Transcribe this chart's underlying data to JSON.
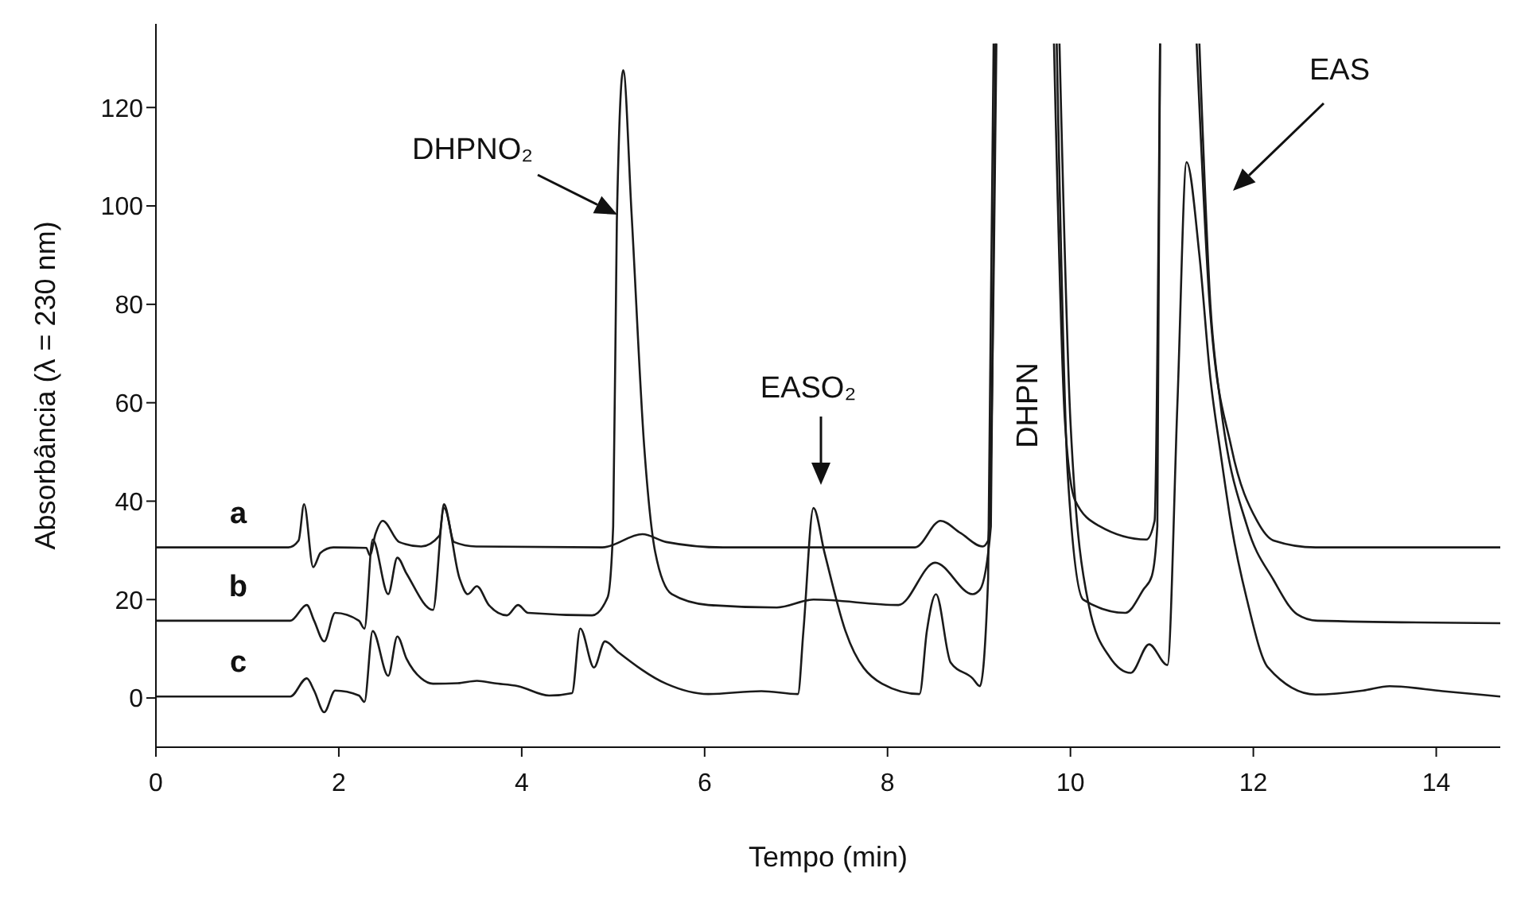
{
  "chart_data": {
    "type": "line",
    "xlabel": "Tempo (min)",
    "ylabel": "Absorbância (λ = 230 nm)",
    "xlim": [
      0,
      14.7
    ],
    "xticks": [
      0,
      2,
      4,
      6,
      8,
      10,
      12,
      14
    ],
    "ylim": [
      -10,
      137
    ],
    "yticks": [
      0,
      20,
      40,
      60,
      80,
      100,
      120
    ],
    "grid": false,
    "legend": false,
    "marker": "none",
    "line_style": "solid",
    "series": [
      {
        "name": "a",
        "color": "#1a1a1a",
        "x": [
          0,
          1.45,
          1.56,
          1.62,
          1.72,
          1.8,
          1.94,
          2.3,
          2.34,
          2.4,
          2.48,
          2.66,
          2.9,
          3.1,
          3.15,
          3.26,
          3.5,
          4.88,
          5.32,
          5.58,
          6.2,
          8.3,
          8.58,
          8.8,
          9.04,
          9.1,
          9.19,
          9.5,
          9.82,
          9.94,
          10.05,
          10.31,
          10.83,
          10.92,
          10.98,
          11.2,
          11.38,
          11.53,
          11.76,
          12.04,
          12.22,
          12.68,
          14.7
        ],
        "values": [
          30.6,
          30.6,
          32,
          39.4,
          26.6,
          29.5,
          30.6,
          30.5,
          29,
          33.3,
          36,
          31.7,
          30.8,
          33,
          39.4,
          31.7,
          30.8,
          30.6,
          33.3,
          31.7,
          30.6,
          30.6,
          36,
          33.5,
          30.8,
          32,
          133,
          null,
          133,
          56.2,
          40.2,
          35,
          32.2,
          36,
          133,
          null,
          133,
          78,
          50.9,
          36,
          32,
          30.6,
          30.6
        ]
      },
      {
        "name": "b",
        "color": "#1a1a1a",
        "x": [
          0,
          1.47,
          1.65,
          1.73,
          1.84,
          1.96,
          2.22,
          2.28,
          2.37,
          2.54,
          2.64,
          2.74,
          3.03,
          3.15,
          3.32,
          3.41,
          3.51,
          3.64,
          3.84,
          3.96,
          4.07,
          4.77,
          4.94,
          5.0,
          5.04,
          5.11,
          5.2,
          5.34,
          5.46,
          5.64,
          6.04,
          6.79,
          7.19,
          8.12,
          8.52,
          8.93,
          9.01,
          9.13,
          9.18,
          9.5,
          9.85,
          9.97,
          10.14,
          10.6,
          10.8,
          10.89,
          10.95,
          10.98,
          11.2,
          11.41,
          11.53,
          11.64,
          11.93,
          12.22,
          12.48,
          12.7,
          14.7
        ],
        "values": [
          15.7,
          15.7,
          18.9,
          15.7,
          11.5,
          17.3,
          15.7,
          14.1,
          32.2,
          21.1,
          28.5,
          25.3,
          17.9,
          38.6,
          24.3,
          21.1,
          22.7,
          18.9,
          16.8,
          18.9,
          17.3,
          16.8,
          20.5,
          34.9,
          96.7,
          127.6,
          98.8,
          50.9,
          29.6,
          21.1,
          18.9,
          18.4,
          20,
          18.9,
          27.5,
          21.1,
          22,
          34.9,
          133,
          null,
          133,
          45.6,
          20,
          17.3,
          22.1,
          24.8,
          34.9,
          133,
          null,
          133,
          80,
          60,
          35,
          24,
          17,
          15.7,
          15.2
        ]
      },
      {
        "name": "c",
        "color": "#1a1a1a",
        "x": [
          0,
          1.47,
          1.65,
          1.73,
          1.84,
          1.96,
          2.22,
          2.28,
          2.37,
          2.54,
          2.64,
          2.74,
          2.9,
          3.03,
          3.3,
          3.51,
          3.7,
          3.96,
          4.3,
          4.55,
          4.64,
          4.79,
          4.91,
          5.05,
          5.58,
          6.04,
          6.62,
          7.02,
          7.08,
          7.19,
          7.31,
          7.54,
          7.94,
          8.35,
          8.43,
          8.53,
          8.69,
          8.93,
          9.01,
          9.1,
          9.16,
          9.5,
          9.88,
          10.0,
          10.2,
          10.43,
          10.66,
          10.86,
          11.06,
          11.17,
          11.27,
          11.41,
          11.53,
          11.64,
          11.76,
          11.93,
          12.16,
          12.68,
          13.2,
          13.49,
          14.07,
          14.7
        ],
        "values": [
          0.3,
          0.3,
          4,
          1.5,
          -2.9,
          1.5,
          0.5,
          -0.8,
          13.6,
          4.5,
          12.5,
          8,
          4,
          2.9,
          3,
          3.5,
          3,
          2.4,
          0.5,
          1,
          14.1,
          6.2,
          11.5,
          9.4,
          2.9,
          0.8,
          1.4,
          0.8,
          13.6,
          38.6,
          29.6,
          13.6,
          2.9,
          0.8,
          13.6,
          21.1,
          7.2,
          4,
          2.4,
          24.3,
          133,
          null,
          133,
          56.2,
          18.9,
          8.3,
          5.1,
          10.9,
          6.7,
          60,
          108.9,
          90,
          65,
          50,
          35,
          20,
          6.2,
          0.7,
          1.5,
          2.4,
          1.4,
          0.3
        ]
      }
    ],
    "annotations": [
      "DHPNO₂",
      "EASO₂",
      "DHPN",
      "EAS"
    ]
  }
}
